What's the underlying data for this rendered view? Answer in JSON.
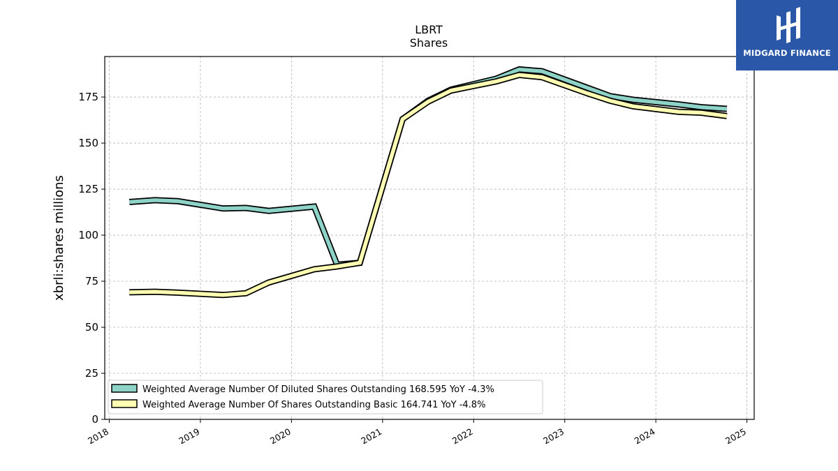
{
  "chart_data": {
    "type": "line",
    "title": "LBRT",
    "subtitle": "Shares",
    "xlabel": "",
    "ylabel": "xbrli:shares millions",
    "xlim": [
      2017.95,
      2025.08
    ],
    "ylim": [
      0,
      197
    ],
    "x_ticks": [
      2018,
      2019,
      2020,
      2021,
      2022,
      2023,
      2024,
      2025
    ],
    "x_tick_labels": [
      "2018",
      "2019",
      "2020",
      "2021",
      "2022",
      "2023",
      "2024",
      "2025"
    ],
    "y_ticks": [
      0,
      25,
      50,
      75,
      100,
      125,
      150,
      175
    ],
    "y_tick_labels": [
      "0",
      "25",
      "50",
      "75",
      "100",
      "125",
      "150",
      "175"
    ],
    "grid": true,
    "legend_position": "lower-left",
    "series": [
      {
        "name": "Weighted Average Number Of Diluted Shares Outstanding",
        "legend_label": "Weighted Average Number Of Diluted Shares Outstanding  168.595 YoY -4.3%",
        "color": "#8dd3c7",
        "x": [
          2018.22,
          2018.5,
          2018.75,
          2019.25,
          2019.5,
          2019.75,
          2020.25,
          2020.5,
          2020.75,
          2021.22,
          2021.5,
          2021.75,
          2022.25,
          2022.5,
          2022.75,
          2023.25,
          2023.5,
          2023.75,
          2024.25,
          2024.5,
          2024.78
        ],
        "values": [
          118,
          119,
          118.5,
          114.5,
          114.8,
          113.2,
          115.5,
          84,
          85,
          163,
          173,
          179,
          185,
          190,
          189,
          180,
          175.5,
          173.5,
          171,
          169.5,
          168.6
        ]
      },
      {
        "name": "Weighted Average Number Of Shares Outstanding Basic",
        "legend_label": "Weighted Average Number Of Shares Outstanding Basic  164.741 YoY -4.8%",
        "color": "#ffffb3",
        "x": [
          2018.22,
          2018.5,
          2018.75,
          2019.25,
          2019.5,
          2019.75,
          2020.25,
          2020.5,
          2020.75,
          2021.22,
          2021.5,
          2021.75,
          2022.25,
          2022.5,
          2022.75,
          2023.25,
          2023.5,
          2023.75,
          2024.25,
          2024.5,
          2024.78
        ],
        "values": [
          69,
          69.3,
          68.8,
          67.5,
          68.5,
          74.3,
          81.5,
          83,
          85,
          163,
          172.5,
          178.5,
          183.5,
          187,
          185.8,
          177,
          173,
          170,
          167,
          166.5,
          164.7
        ]
      }
    ]
  },
  "logo": {
    "text": "MIDGARD FINANCE"
  }
}
